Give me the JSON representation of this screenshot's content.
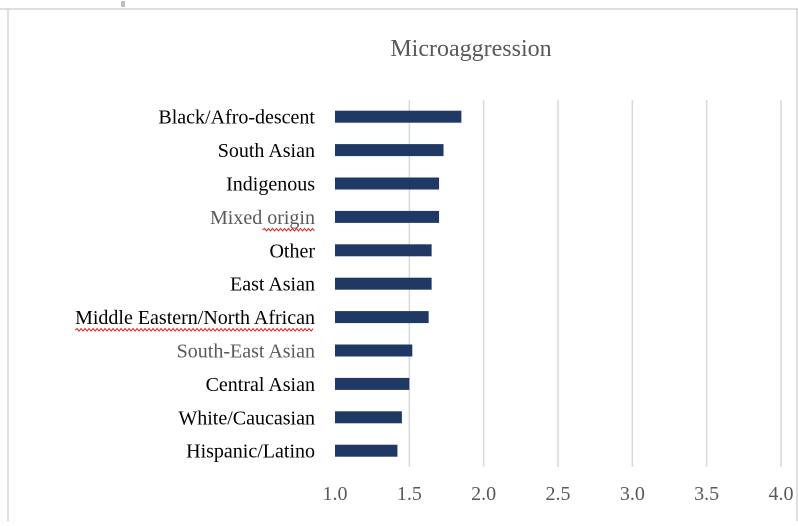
{
  "chart_data": {
    "type": "bar",
    "orientation": "horizontal",
    "title": "Microaggression",
    "xlabel": "",
    "ylabel": "",
    "categories": [
      "Black/Afro-descent",
      "South Asian",
      "Indigenous",
      "Mixed origin",
      "Other",
      "East Asian",
      "Middle Eastern/North African",
      "South-East Asian",
      "Central Asian",
      "White/Caucasian",
      "Hispanic/Latino"
    ],
    "values": [
      1.85,
      1.73,
      1.7,
      1.7,
      1.65,
      1.65,
      1.63,
      1.52,
      1.5,
      1.45,
      1.42
    ],
    "xlim": [
      1.0,
      4.0
    ],
    "xticks": [
      "1.0",
      "1.5",
      "2.0",
      "2.5",
      "3.0",
      "3.5",
      "4.0"
    ],
    "tick_values": [
      1.0,
      1.5,
      2.0,
      2.5,
      3.0,
      3.5,
      4.0
    ],
    "grid": "vertical",
    "legend": "none",
    "bar_color": "#203864",
    "gridline_color": "#d9d9d9",
    "dim_label_color": "#595959",
    "dim_labels": [
      "Mixed origin",
      "South-East Asian"
    ],
    "underlined_labels": [
      "Mixed origin",
      "Middle Eastern/North African"
    ]
  }
}
